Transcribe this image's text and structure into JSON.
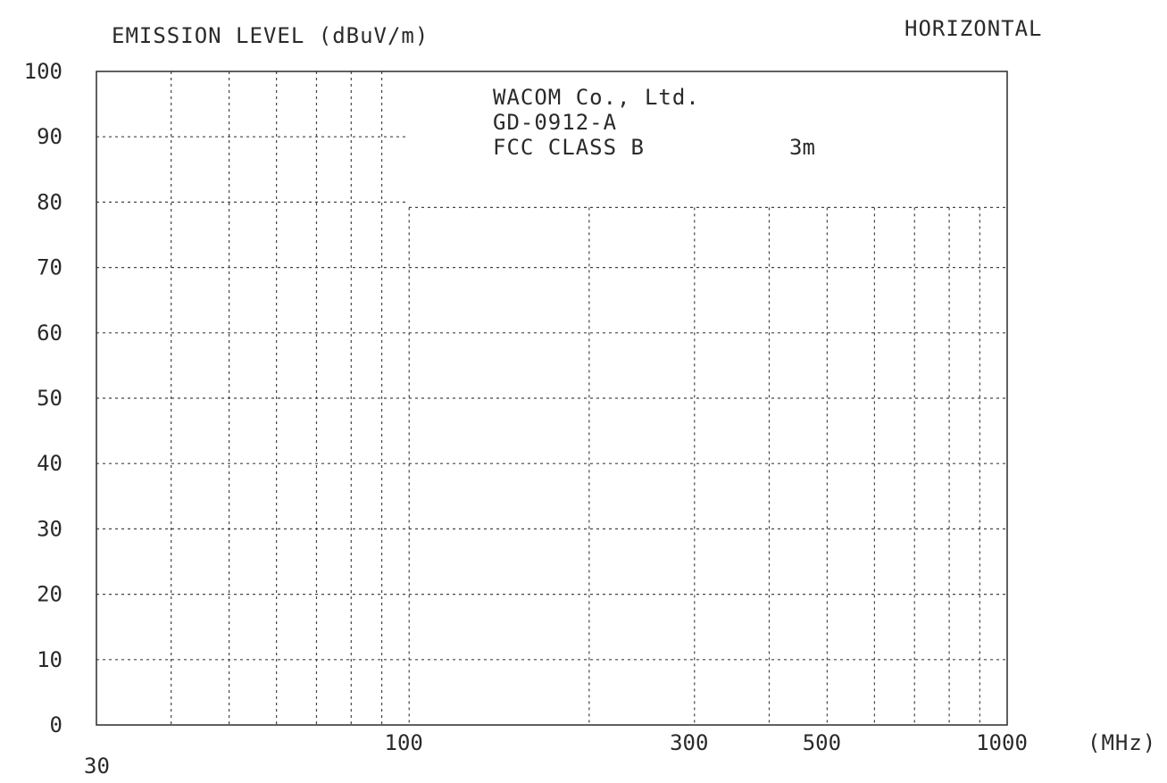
{
  "chart_data": {
    "type": "line",
    "title": "",
    "ylabel": "EMISSION LEVEL (dBuV/m)",
    "xlabel": "(MHz)",
    "polarization": "HORIZONTAL",
    "x_scale": "log",
    "xlim": [
      30,
      1000
    ],
    "ylim": [
      0,
      100
    ],
    "y_ticks": [
      0,
      10,
      20,
      30,
      40,
      50,
      60,
      70,
      80,
      90,
      100
    ],
    "x_tick_labels": [
      {
        "value": 30,
        "label": "30"
      },
      {
        "value": 100,
        "label": "100"
      },
      {
        "value": 300,
        "label": "300"
      },
      {
        "value": 500,
        "label": "500"
      },
      {
        "value": 1000,
        "label": "1000"
      }
    ],
    "x_gridlines": [
      40,
      50,
      60,
      70,
      80,
      90,
      100,
      200,
      300,
      400,
      500,
      600,
      700,
      800,
      900
    ],
    "grid": true,
    "grid_style": "dotted",
    "info_box": {
      "company": "WACOM Co., Ltd.",
      "model": "GD-0912-A",
      "standard": "FCC CLASS B",
      "distance": "3m"
    },
    "series": []
  },
  "colors": {
    "ink": "#2a2a2a",
    "grid": "#444444",
    "background": "#ffffff"
  }
}
